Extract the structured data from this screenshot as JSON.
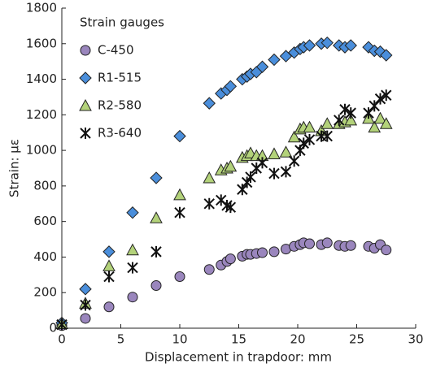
{
  "chart_data": {
    "type": "scatter",
    "x_label": "Displacement in trapdoor: mm",
    "y_label": "Strain: με",
    "legend_title": "Strain gauges",
    "legend": "upper left",
    "xlim": [
      0,
      30
    ],
    "xticks": [
      0,
      5,
      10,
      15,
      20,
      25,
      30
    ],
    "ylim": [
      0,
      1800
    ],
    "yticks": [
      0,
      200,
      400,
      600,
      800,
      1000,
      1200,
      1400,
      1600,
      1800
    ],
    "x": [
      0,
      2,
      4,
      6,
      8,
      10,
      12.5,
      13.5,
      14,
      14.3,
      15.3,
      15.7,
      16,
      16.5,
      17,
      18,
      19,
      19.7,
      20.2,
      20.5,
      21,
      22,
      22.5,
      23.5,
      24,
      24.5,
      26,
      26.5,
      27,
      27.5
    ],
    "series": [
      {
        "name": "C-450",
        "color": "#9a86bd",
        "marker": "circle",
        "values": [
          15,
          55,
          120,
          175,
          240,
          290,
          330,
          355,
          375,
          390,
          405,
          415,
          415,
          420,
          425,
          430,
          445,
          460,
          470,
          480,
          475,
          470,
          480,
          465,
          460,
          465,
          460,
          450,
          470,
          440
        ]
      },
      {
        "name": "R1-515",
        "color": "#4a8edb",
        "marker": "diamond",
        "values": [
          30,
          220,
          430,
          650,
          845,
          1080,
          1265,
          1320,
          1340,
          1360,
          1400,
          1415,
          1430,
          1440,
          1470,
          1510,
          1530,
          1550,
          1570,
          1580,
          1590,
          1600,
          1605,
          1590,
          1580,
          1590,
          1580,
          1560,
          1555,
          1535
        ]
      },
      {
        "name": "R2-580",
        "color": "#b3d27a",
        "marker": "triangle",
        "values": [
          25,
          140,
          350,
          440,
          620,
          750,
          845,
          890,
          900,
          910,
          960,
          970,
          985,
          970,
          970,
          980,
          990,
          1075,
          1120,
          1130,
          1130,
          1110,
          1150,
          1150,
          1160,
          1170,
          1180,
          1130,
          1180,
          1150
        ]
      },
      {
        "name": "R3-640",
        "color": "#111111",
        "marker": "asterisk",
        "values": [
          20,
          130,
          290,
          340,
          430,
          650,
          700,
          720,
          690,
          680,
          780,
          820,
          850,
          900,
          930,
          870,
          880,
          940,
          1000,
          1040,
          1060,
          1080,
          1080,
          1170,
          1230,
          1210,
          1210,
          1250,
          1290,
          1310
        ]
      }
    ]
  }
}
